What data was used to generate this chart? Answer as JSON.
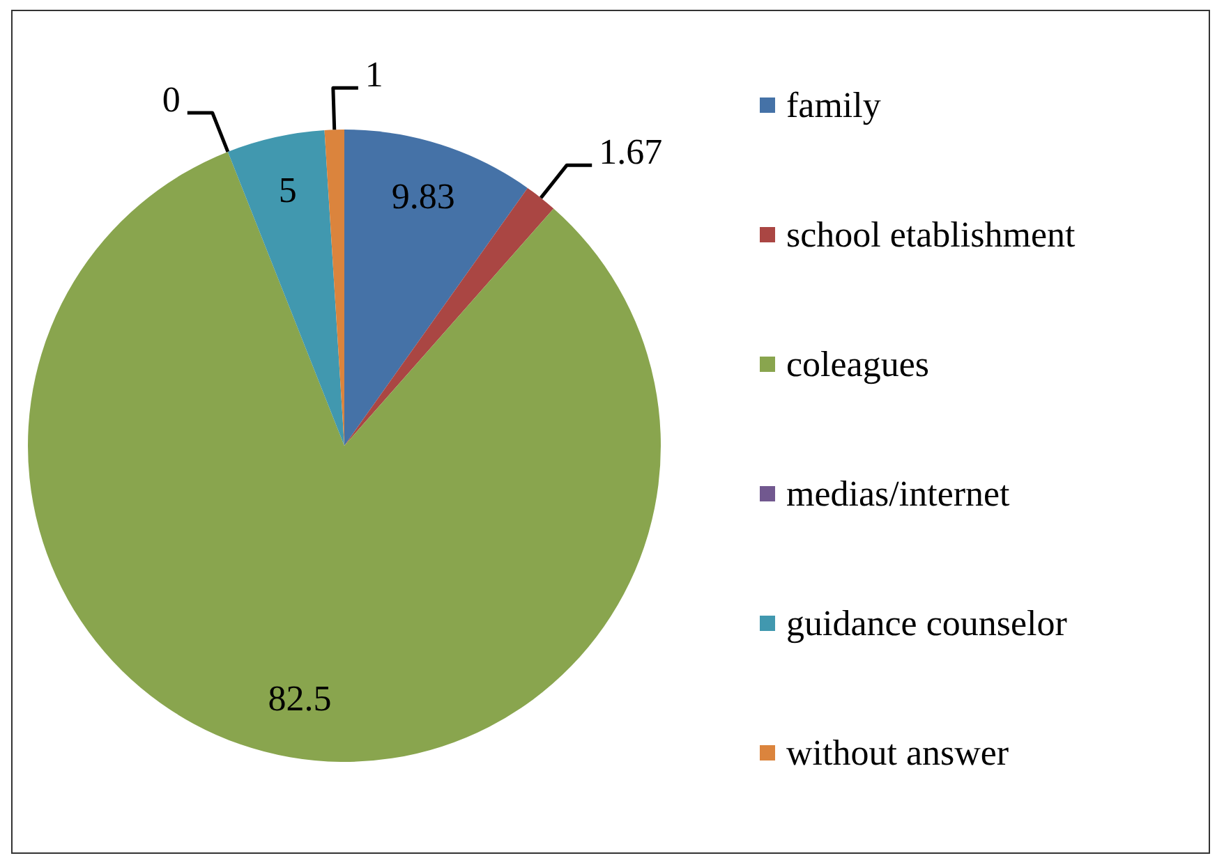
{
  "chart_data": {
    "type": "pie",
    "categories": [
      "family",
      "school etablishment",
      "coleagues",
      "medias/internet",
      "guidance counselor",
      "without answer"
    ],
    "values": [
      9.83,
      1.67,
      82.5,
      0,
      5,
      1
    ],
    "value_labels": [
      "9.83",
      "1.67",
      "82.5",
      "0",
      "5",
      "1"
    ],
    "colors": [
      "#4572a7",
      "#aa4643",
      "#89a54e",
      "#71588f",
      "#4198af",
      "#db843d"
    ],
    "legend": "right"
  }
}
